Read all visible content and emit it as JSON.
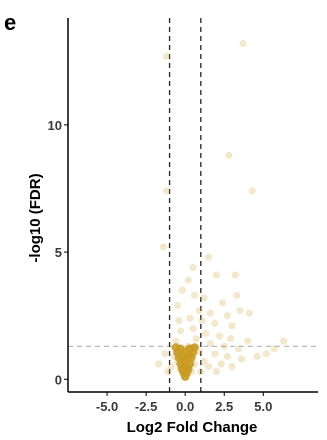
{
  "panel_label": "e",
  "chart_data": {
    "type": "scatter",
    "title": "",
    "xlabel": "Log2 Fold Change",
    "ylabel": "-log10 (FDR)",
    "xlim": [
      -7.5,
      8.5
    ],
    "ylim": [
      -0.5,
      14.2
    ],
    "x_ticks": [
      -5.0,
      -2.5,
      0.0,
      2.5,
      5.0
    ],
    "x_tick_labels": [
      "-5.0",
      "-2.5",
      "0.0",
      "2.5",
      "5.0"
    ],
    "y_ticks": [
      0,
      5,
      10
    ],
    "y_tick_labels": [
      "0",
      "5",
      "10"
    ],
    "vertical_threshold_lines": [
      -1,
      1
    ],
    "horizontal_threshold_line": 1.3,
    "grid": false,
    "point_color": "#d4a332",
    "core_color": "#c89a20",
    "points": [
      {
        "x": -1.2,
        "y": 12.7
      },
      {
        "x": 3.7,
        "y": 13.2
      },
      {
        "x": -1.2,
        "y": 7.4
      },
      {
        "x": 2.8,
        "y": 8.8
      },
      {
        "x": 4.3,
        "y": 7.4
      },
      {
        "x": -1.4,
        "y": 5.2
      },
      {
        "x": 1.5,
        "y": 4.8
      },
      {
        "x": 0.5,
        "y": 4.4
      },
      {
        "x": 0.2,
        "y": 3.9
      },
      {
        "x": 2.0,
        "y": 4.1
      },
      {
        "x": 3.2,
        "y": 4.1
      },
      {
        "x": -0.2,
        "y": 3.5
      },
      {
        "x": 0.6,
        "y": 3.3
      },
      {
        "x": 1.2,
        "y": 3.2
      },
      {
        "x": 2.4,
        "y": 3.0
      },
      {
        "x": 3.3,
        "y": 3.3
      },
      {
        "x": 3.5,
        "y": 2.7
      },
      {
        "x": -0.5,
        "y": 2.9
      },
      {
        "x": 0.9,
        "y": 2.7
      },
      {
        "x": 1.6,
        "y": 2.6
      },
      {
        "x": 2.7,
        "y": 2.5
      },
      {
        "x": 4.1,
        "y": 2.6
      },
      {
        "x": -0.4,
        "y": 2.3
      },
      {
        "x": 0.3,
        "y": 2.4
      },
      {
        "x": 1.1,
        "y": 2.3
      },
      {
        "x": 1.9,
        "y": 2.2
      },
      {
        "x": 3.0,
        "y": 2.1
      },
      {
        "x": -0.3,
        "y": 1.9
      },
      {
        "x": 0.5,
        "y": 2.0
      },
      {
        "x": 1.3,
        "y": 1.8
      },
      {
        "x": 2.2,
        "y": 1.7
      },
      {
        "x": 2.9,
        "y": 1.6
      },
      {
        "x": 4.0,
        "y": 1.5
      },
      {
        "x": -0.6,
        "y": 1.5
      },
      {
        "x": 0.7,
        "y": 1.6
      },
      {
        "x": 1.6,
        "y": 1.4
      },
      {
        "x": 2.5,
        "y": 1.3
      },
      {
        "x": 3.4,
        "y": 1.2
      },
      {
        "x": 5.7,
        "y": 1.2
      },
      {
        "x": 5.2,
        "y": 1.0
      },
      {
        "x": 6.3,
        "y": 1.5
      },
      {
        "x": -0.4,
        "y": 1.2
      },
      {
        "x": 0.2,
        "y": 1.3
      },
      {
        "x": 0.9,
        "y": 1.1
      },
      {
        "x": 1.9,
        "y": 1.0
      },
      {
        "x": 2.7,
        "y": 0.9
      },
      {
        "x": 3.6,
        "y": 0.8
      },
      {
        "x": 4.6,
        "y": 0.9
      },
      {
        "x": -0.7,
        "y": 0.9
      },
      {
        "x": -1.3,
        "y": 1.0
      },
      {
        "x": -1.7,
        "y": 0.6
      },
      {
        "x": -0.9,
        "y": 0.5
      },
      {
        "x": -0.5,
        "y": 0.7
      },
      {
        "x": 0.1,
        "y": 0.8
      },
      {
        "x": 0.6,
        "y": 0.6
      },
      {
        "x": 1.2,
        "y": 0.7
      },
      {
        "x": 1.5,
        "y": 0.5
      },
      {
        "x": 2.3,
        "y": 0.6
      },
      {
        "x": 3.0,
        "y": 0.5
      },
      {
        "x": -0.3,
        "y": 0.4
      },
      {
        "x": 0.4,
        "y": 0.3
      },
      {
        "x": 1.0,
        "y": 0.3
      },
      {
        "x": -1.1,
        "y": 0.3
      },
      {
        "x": 2.0,
        "y": 0.3
      }
    ],
    "core": [
      {
        "x": 0.0,
        "y": 0.1
      },
      {
        "x": -0.1,
        "y": 0.25
      },
      {
        "x": 0.1,
        "y": 0.25
      },
      {
        "x": -0.2,
        "y": 0.4
      },
      {
        "x": 0.2,
        "y": 0.4
      },
      {
        "x": 0.0,
        "y": 0.45
      },
      {
        "x": -0.3,
        "y": 0.6
      },
      {
        "x": 0.3,
        "y": 0.6
      },
      {
        "x": 0.0,
        "y": 0.7
      },
      {
        "x": -0.4,
        "y": 0.85
      },
      {
        "x": 0.4,
        "y": 0.85
      },
      {
        "x": -0.15,
        "y": 0.9
      },
      {
        "x": 0.15,
        "y": 0.9
      },
      {
        "x": -0.5,
        "y": 1.05
      },
      {
        "x": 0.5,
        "y": 1.05
      },
      {
        "x": 0.0,
        "y": 1.1
      },
      {
        "x": -0.3,
        "y": 1.2
      },
      {
        "x": 0.3,
        "y": 1.2
      },
      {
        "x": -0.6,
        "y": 1.25
      },
      {
        "x": 0.6,
        "y": 1.25
      }
    ]
  }
}
